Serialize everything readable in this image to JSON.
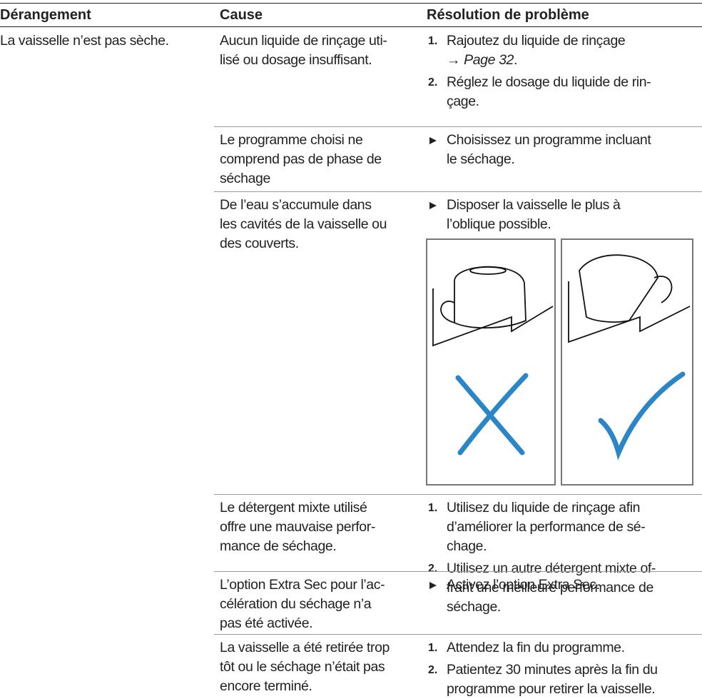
{
  "header": {
    "columns": [
      "Dérangement",
      "Cause",
      "Résolution de problème"
    ]
  },
  "rows": [
    {
      "problem": [
        "La vaisselle n’est pas sèche."
      ],
      "cause": [
        "Aucun liquide de rinçage uti-",
        "lisé ou dosage insuffisant."
      ],
      "solution": {
        "style": "numbered",
        "items": [
          {
            "marker": "1.",
            "lines": [
              "Rajoutez du liquide de rinçage"
            ],
            "link": "→ Page 32",
            "link_suffix": "."
          },
          {
            "marker": "2.",
            "lines": [
              "Réglez le dosage du liquide de rin-",
              "çage."
            ]
          }
        ]
      }
    },
    {
      "cause": [
        "Le programme choisi ne",
        "comprend pas de phase de",
        "séchage"
      ],
      "solution": {
        "style": "bullet",
        "items": [
          {
            "lines": [
              "Choisissez un programme incluant",
              "le séchage."
            ]
          }
        ]
      }
    },
    {
      "cause": [
        "De l’eau s’accumule dans",
        "les cavités de la vaisselle ou",
        "des couverts."
      ],
      "solution": {
        "style": "bullet",
        "items": [
          {
            "lines": [
              "Disposer la vaisselle le plus à",
              "l’oblique possible."
            ]
          }
        ]
      }
    },
    {
      "cause": [
        "Le détergent mixte utilisé",
        "offre une mauvaise perfor-",
        "mance de séchage."
      ],
      "solution": {
        "style": "numbered",
        "items": [
          {
            "marker": "1.",
            "lines": [
              "Utilisez du liquide de rinçage afin",
              "d’améliorer la performance de sé-",
              "chage."
            ]
          },
          {
            "marker": "2.",
            "lines": [
              "Utilisez un autre détergent mixte of-",
              "frant une meilleure performance de",
              "séchage."
            ]
          }
        ]
      }
    },
    {
      "cause": [
        "L’option Extra Sec pour l’ac-",
        "célération du séchage n’a",
        "pas été activée."
      ],
      "solution": {
        "style": "bullet",
        "items": [
          {
            "lines": [
              "Activez l’option Extra Sec."
            ]
          }
        ]
      }
    },
    {
      "cause": [
        "La vaisselle a été retirée trop",
        "tôt ou le séchage n’était pas",
        "encore terminé."
      ],
      "solution": {
        "style": "numbered",
        "items": [
          {
            "marker": "1.",
            "lines": [
              "Attendez la fin du programme."
            ]
          },
          {
            "marker": "2.",
            "lines": [
              "Patientez 30 minutes après la fin du",
              "programme pour retirer la vaisselle."
            ]
          }
        ]
      }
    }
  ]
}
